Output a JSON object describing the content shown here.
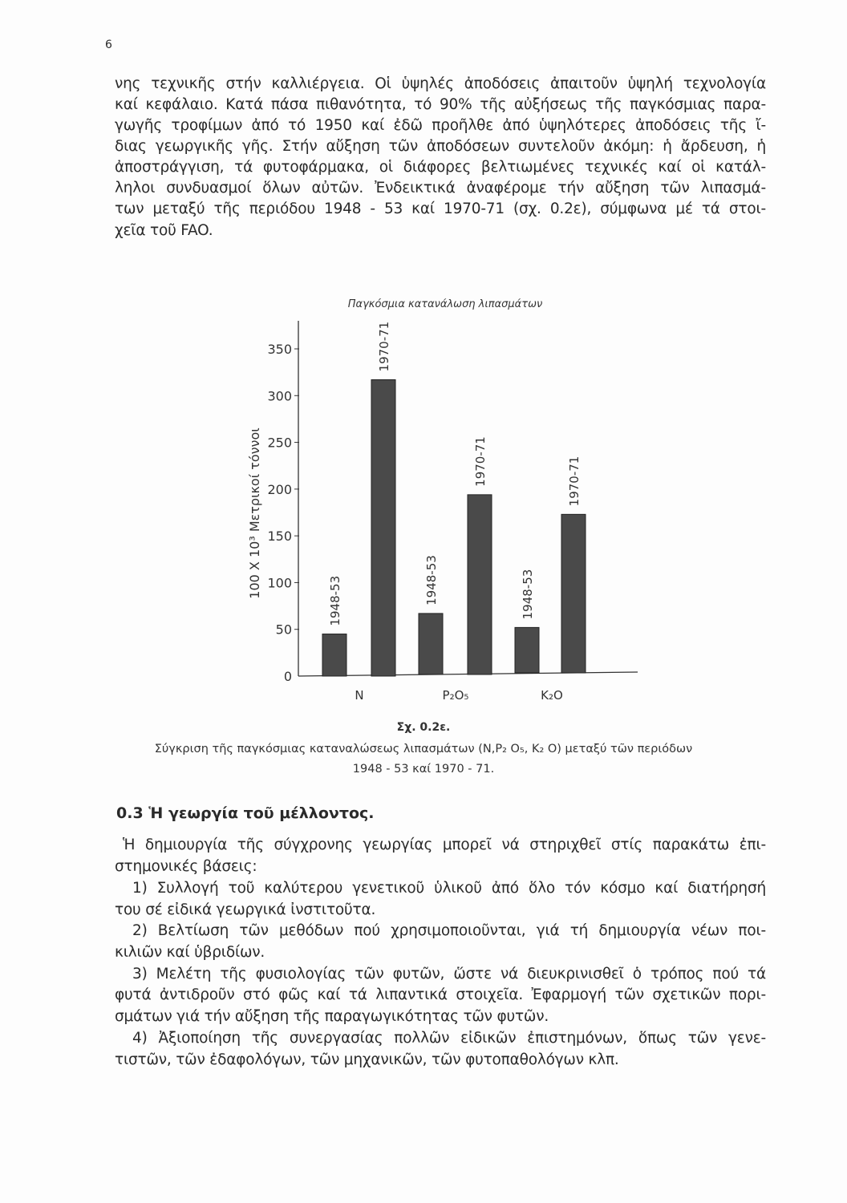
{
  "page_number": "6",
  "intro_lines": [
    "νης τεχνικῆς στήν καλλιέργεια. Οἱ ὑψηλές ἀποδόσεις ἀπαιτοῦν ὑψηλή τεχνολογία",
    "καί κεφάλαιο. Κατά πάσα πιθανότητα, τό 90% τῆς αὐξήσεως τῆς παγκόσμιας παρα-",
    "γωγῆς τροφίμων ἀπό τό 1950 καί ἐδῶ προῆλθε ἀπό ὑψηλότερες ἀποδόσεις τῆς ἴ-",
    "διας γεωργικῆς γῆς. Στήν αὔξηση τῶν ἀποδόσεων συντελοῦν ἀκόμη: ἡ ἄρδευση, ἡ",
    "ἀποστράγγιση, τά φυτοφάρμακα, οἱ διάφορες βελτιωμένες τεχνικές καί οἱ κατάλ-",
    "ληλοι συνδυασμοί ὅλων αὐτῶν. Ἐνδεικτικά ἀναφέρομε τήν αὔξηση τῶν λιπασμά-",
    "των μεταξύ τῆς περιόδου 1948 - 53 καί 1970-71 (σχ. 0.2ε), σύμφωνα μέ τά στοι-",
    "χεῖα τοῦ FAO."
  ],
  "chart_data": {
    "type": "bar",
    "title": "Παγκόσμια κατανάλωση λιπασμάτων",
    "ylabel": "100 X 10³ Μετρικοί τόννοι",
    "ylim": [
      0,
      375
    ],
    "yticks": [
      "0",
      "50",
      "100",
      "150",
      "200",
      "250",
      "300",
      "350"
    ],
    "categories": [
      "N",
      "P₂O₅",
      "K₂O"
    ],
    "bar_labels": [
      "1948-53",
      "1970-71"
    ],
    "series": [
      {
        "name": "1948-53",
        "values": [
          45,
          67,
          52
        ]
      },
      {
        "name": "1970-71",
        "values": [
          317,
          194,
          173
        ]
      }
    ],
    "bar_color": "#4a4a4a",
    "grid": false
  },
  "caption": {
    "figure": "Σχ. 0.2ε.",
    "line1": "Σύγκριση τῆς παγκόσμιας καταναλώσεως λιπασμάτων (N,P₂ O₅, K₂ O) μεταξύ τῶν περιόδων",
    "line2": "1948 - 53 καί 1970 - 71."
  },
  "section_heading": "0.3 Ἡ γεωργία τοῦ μέλλοντος.",
  "body_lines": [
    "Ἡ δημιουργία τῆς σύγχρονης γεωργίας μπορεῖ νά στηριχθεῖ στίς παρακάτω ἐπι-",
    "στημονικές βάσεις:",
    "1) Συλλογή τοῦ καλύτερου γενετικοῦ ὑλικοῦ ἀπό ὅλο τόν κόσμο καί διατήρησή",
    "του σέ εἰδικά γεωργικά ἰνστιτοῦτα.",
    "2) Βελτίωση τῶν μεθόδων πού χρησιμοποιοῦνται, γιά τή δημιουργία νέων ποι-",
    "κιλιῶν καί ὑβριδίων.",
    "3) Μελέτη τῆς φυσιολογίας τῶν φυτῶν, ὥστε νά διευκρινισθεῖ ὁ τρόπος πού τά",
    "φυτά ἀντιδροῦν στό φῶς καί τά λιπαντικά στοιχεῖα. Ἐφαρμογή τῶν σχετικῶν πορι-",
    "σμάτων γιά τήν αὔξηση τῆς παραγωγικότητας τῶν φυτῶν.",
    "4) Ἀξιοποίηση τῆς συνεργασίας πολλῶν εἰδικῶν ἐπιστημόνων, ὅπως τῶν γενε-",
    "τιστῶν, τῶν ἐδαφολόγων, τῶν μηχανικῶν, τῶν φυτοπαθολόγων κλπ."
  ]
}
